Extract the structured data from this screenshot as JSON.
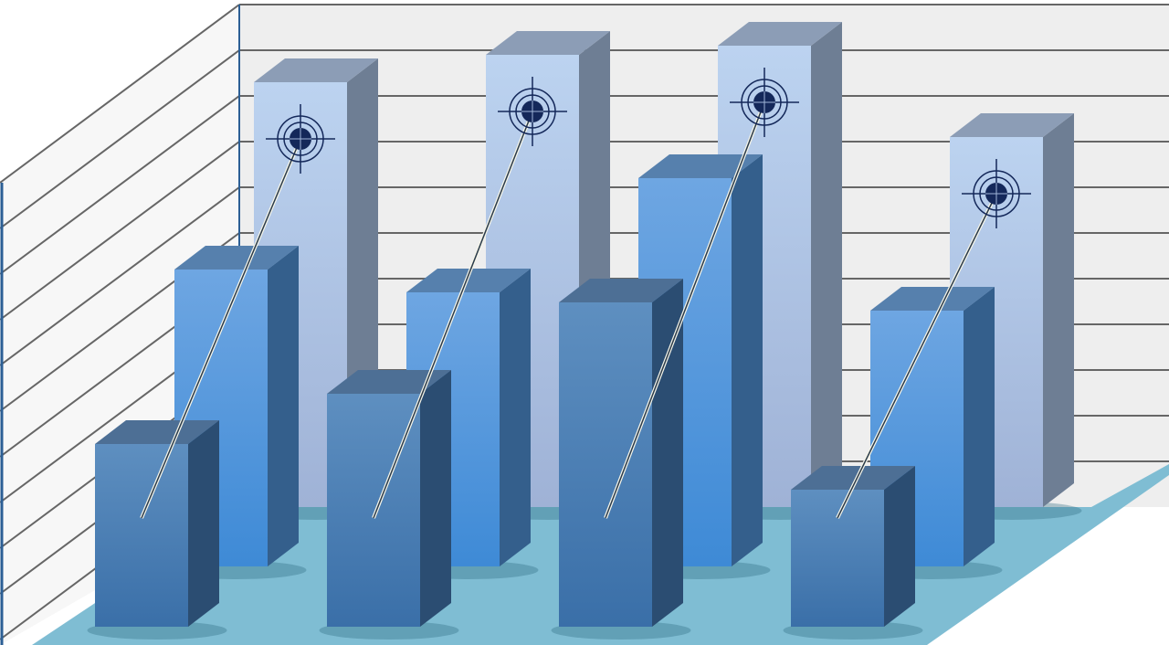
{
  "chart_data": {
    "type": "bar",
    "style": "3d-grouped",
    "title": "",
    "xlabel": "",
    "ylabel": "",
    "grid": true,
    "ylim": [
      0,
      11
    ],
    "series": [
      {
        "values": [
          9.3,
          9.9,
          10.1,
          8.1
        ],
        "color": "#b6cdec",
        "markers": "target"
      },
      {
        "values": [
          6.5,
          6.0,
          8.5,
          5.6
        ],
        "color": "#5a9de0"
      },
      {
        "values": [
          4.0,
          5.1,
          7.1,
          3.0
        ],
        "color": "#4a80b8"
      }
    ]
  },
  "colors": {
    "back_wall": "#eeeeee",
    "grid_line": "#666666",
    "floor": "#7fbdd3",
    "target": "#14285a"
  }
}
